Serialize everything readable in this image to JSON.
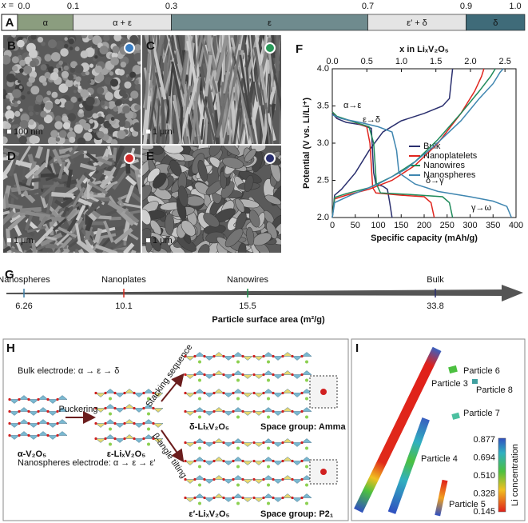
{
  "panel_a": {
    "label": "A",
    "x_label": "x =",
    "ticks": [
      "0.0",
      "0.1",
      "0.3",
      "0.7",
      "0.9",
      "1.0"
    ],
    "phases": [
      {
        "label": "α",
        "color": "#8b9d7f"
      },
      {
        "label": "α + ε",
        "color": "#e4e4e4"
      },
      {
        "label": "ε",
        "color": "#6f8b8e"
      },
      {
        "label": "ε′ + δ",
        "color": "#e4e4e4"
      },
      {
        "label": "δ",
        "color": "#3f6b79"
      }
    ]
  },
  "sem_panels": [
    {
      "label": "B",
      "scale": "100 nm",
      "dot_color": "#3b7fc4"
    },
    {
      "label": "C",
      "scale": "1 μm",
      "dot_color": "#2a9a5a"
    },
    {
      "label": "D",
      "scale": "1 μm",
      "dot_color": "#d42a2a"
    },
    {
      "label": "E",
      "scale": "1 μm",
      "dot_color": "#2a2f6e"
    }
  ],
  "panel_f_label": "F",
  "chart_data": {
    "type": "line",
    "xlabel": "Specific capacity (mAh/g)",
    "ylabel": "Potential (V vs. Li/Li⁺)",
    "x2label": "x in LiₓV₂O₅",
    "xlim": [
      0,
      400
    ],
    "xticks": [
      0,
      50,
      100,
      150,
      200,
      250,
      300,
      350,
      400
    ],
    "ylim": [
      2,
      4
    ],
    "yticks": [
      {
        "value": 2,
        "label": "2.0"
      },
      {
        "value": 2.5,
        "label": "2.5"
      },
      {
        "value": 3,
        "label": "3.0"
      },
      {
        "value": 3.5,
        "label": "3.5"
      },
      {
        "value": 4,
        "label": "4.0"
      }
    ],
    "x2lim": [
      0,
      2.66
    ],
    "x2ticks": [
      {
        "value": 0,
        "label": "0.0"
      },
      0.5,
      {
        "value": 1,
        "label": "1.0"
      },
      1.5,
      {
        "value": 2,
        "label": "2.0"
      },
      2.5
    ],
    "annotations": [
      "α→ε",
      "ε→δ",
      "δ→γ",
      "γ→ω"
    ],
    "series": [
      {
        "name": "Bulk",
        "color": "#2a2f6e",
        "x": [
          0,
          10,
          30,
          60,
          85,
          90,
          95,
          110,
          120,
          125,
          130,
          null,
          0,
          5,
          20,
          50,
          80,
          110,
          150,
          200,
          240,
          255,
          262
        ],
        "values": [
          3.4,
          3.33,
          3.28,
          3.25,
          3.2,
          2.6,
          2.45,
          2.42,
          2.38,
          2.2,
          2.0,
          null,
          2.0,
          2.3,
          2.38,
          2.6,
          2.9,
          3.15,
          3.3,
          3.4,
          3.5,
          3.6,
          4.0
        ]
      },
      {
        "name": "Nanoplatelets",
        "color": "#e0261f",
        "x": [
          0,
          10,
          40,
          75,
          82,
          88,
          95,
          150,
          200,
          215,
          222,
          null,
          0,
          5,
          30,
          80,
          130,
          180,
          230,
          280,
          310,
          325,
          330
        ],
        "values": [
          3.42,
          3.35,
          3.3,
          3.22,
          3.0,
          2.4,
          2.33,
          2.3,
          2.28,
          2.2,
          2.0,
          null,
          2.0,
          2.25,
          2.3,
          2.38,
          2.5,
          2.7,
          3.0,
          3.4,
          3.7,
          3.9,
          4.0
        ]
      },
      {
        "name": "Nanowires",
        "color": "#1f8a5a",
        "x": [
          0,
          10,
          40,
          80,
          90,
          96,
          105,
          170,
          240,
          255,
          262,
          null,
          0,
          5,
          30,
          80,
          130,
          180,
          230,
          280,
          320,
          345,
          355
        ],
        "values": [
          3.42,
          3.36,
          3.3,
          3.22,
          3.0,
          2.45,
          2.33,
          2.31,
          2.28,
          2.2,
          2.0,
          null,
          2.0,
          2.27,
          2.32,
          2.4,
          2.55,
          2.75,
          3.05,
          3.4,
          3.7,
          3.9,
          4.0
        ]
      },
      {
        "name": "Nanospheres",
        "color": "#3f86b0",
        "x": [
          0,
          20,
          60,
          100,
          130,
          140,
          145,
          180,
          230,
          300,
          350,
          380,
          390,
          null,
          0,
          5,
          40,
          100,
          160,
          220,
          280,
          320,
          350,
          365,
          372
        ],
        "values": [
          3.38,
          3.33,
          3.28,
          3.22,
          3.15,
          2.9,
          2.6,
          2.45,
          2.35,
          2.28,
          2.22,
          2.15,
          2.0,
          null,
          2.0,
          2.2,
          2.3,
          2.45,
          2.65,
          2.95,
          3.3,
          3.6,
          3.8,
          3.95,
          4.0
        ]
      }
    ]
  },
  "panel_g": {
    "label": "G",
    "axis_label": "Particle surface area (m²/g)",
    "items": [
      {
        "name": "Nanospheres",
        "value": "6.26",
        "color": "#3f7fa6"
      },
      {
        "name": "Nanoplates",
        "value": "10.1",
        "color": "#d42a1f"
      },
      {
        "name": "Nanowires",
        "value": "15.5",
        "color": "#1f8a4a"
      },
      {
        "name": "Bulk",
        "value": "33.8",
        "color": "#2a2f6e"
      }
    ]
  },
  "panel_h": {
    "label": "H",
    "bulk_path": "Bulk electrode: α → ε → δ",
    "nano_path": "Nanospheres electrode: α → ε → ε′",
    "puckering": "Puckering",
    "stacking": "Stacking sequence",
    "tilting": "β-angle tilting",
    "alpha": "α-V₂O₅",
    "epsilon": "ε-LiₓV₂O₅",
    "delta": "δ-LiₓV₂O₅",
    "epsilon_prime": "ε′-LiₓV₂O₅",
    "space_amma": "Space group: Amma",
    "space_p21": "Space group: P2₁"
  },
  "panel_i": {
    "label": "I",
    "particles": [
      "Particle 3",
      "Particle 4",
      "Particle 5",
      "Particle 6",
      "Particle 7",
      "Particle 8"
    ],
    "colorbar_label": "Li concentration",
    "colorbar_ticks": [
      "0.877",
      "0.694",
      "0.510",
      "0.328",
      "0.145"
    ]
  }
}
